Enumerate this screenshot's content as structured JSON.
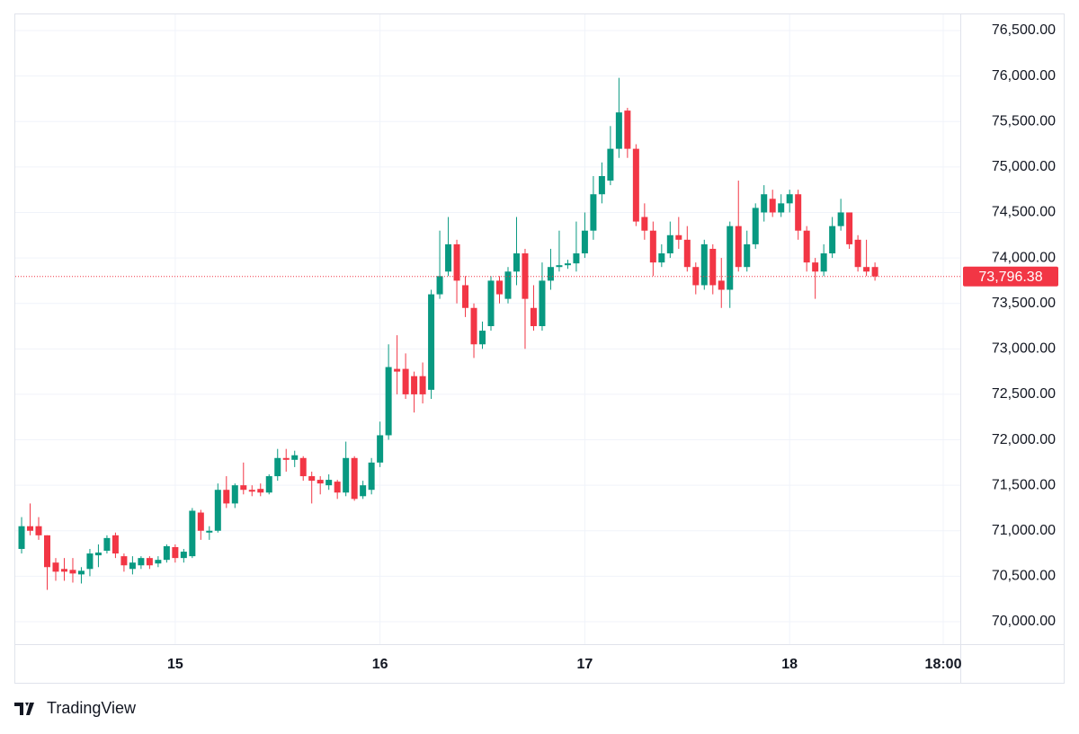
{
  "chart_data": {
    "type": "candlestick",
    "x": [
      6,
      7,
      8,
      9,
      10,
      11,
      12,
      13,
      14,
      15,
      16,
      17,
      18,
      19,
      20,
      21,
      22,
      23,
      24,
      25,
      26,
      27,
      28,
      29,
      30,
      31,
      32,
      33,
      34,
      35,
      36,
      37,
      38,
      39,
      40,
      41,
      42,
      43,
      44,
      45,
      46,
      47,
      48,
      49,
      50,
      51,
      52,
      53,
      54,
      55,
      56,
      57,
      58,
      59,
      60,
      61,
      62,
      63,
      64,
      65,
      66,
      67,
      68,
      69,
      70,
      71,
      72,
      73,
      74,
      75,
      76,
      77,
      78,
      79,
      80,
      81,
      82,
      83,
      84,
      85,
      86,
      87,
      88,
      89,
      90,
      91,
      92,
      93,
      94,
      95,
      96,
      97,
      98,
      99,
      100,
      101,
      102,
      103,
      104,
      105,
      106
    ],
    "open": [
      70800,
      71050,
      71050,
      70950,
      70650,
      70580,
      70570,
      70520,
      70580,
      70730,
      70780,
      70950,
      70720,
      70580,
      70620,
      70700,
      70640,
      70680,
      70820,
      70700,
      70720,
      71200,
      70980,
      71000,
      71450,
      71300,
      71500,
      71450,
      71460,
      71420,
      71600,
      71800,
      71780,
      71800,
      71600,
      71560,
      71500,
      71540,
      71420,
      71800,
      71380,
      71450,
      71750,
      72050,
      72780,
      72780,
      72700,
      72700,
      72550,
      73600,
      73850,
      74150,
      73700,
      73450,
      73050,
      73250,
      73750,
      73550,
      73850,
      74050,
      73450,
      73250,
      73750,
      73900,
      73920,
      73940,
      74050,
      74300,
      74700,
      74850,
      75200,
      75620,
      75200,
      74450,
      74300,
      73950,
      74050,
      74250,
      74200,
      73900,
      73700,
      74100,
      73750,
      73650,
      74350,
      73900,
      74150,
      74500,
      74650,
      74500,
      74600,
      74700,
      74300,
      73950,
      73850,
      74050,
      74350,
      74500,
      74200,
      73900,
      73900
    ],
    "high": [
      71150,
      71300,
      71150,
      70950,
      70700,
      70700,
      70700,
      70600,
      70800,
      70850,
      70950,
      70980,
      70750,
      70720,
      70720,
      70720,
      70720,
      70850,
      70850,
      70800,
      71250,
      71230,
      71050,
      71520,
      71600,
      71520,
      71750,
      71500,
      71520,
      71620,
      71900,
      71900,
      71880,
      71820,
      71650,
      71600,
      71620,
      71560,
      71980,
      71820,
      71550,
      71800,
      72200,
      73050,
      73150,
      72950,
      72750,
      72850,
      73650,
      74300,
      74450,
      74200,
      73800,
      73500,
      73300,
      73800,
      73800,
      73900,
      74450,
      74100,
      73700,
      73950,
      74100,
      74300,
      73980,
      74400,
      74500,
      74900,
      75050,
      75450,
      75980,
      75650,
      75250,
      74600,
      74400,
      74150,
      74400,
      74450,
      74350,
      73950,
      74200,
      74150,
      74000,
      74400,
      74850,
      74300,
      74600,
      74800,
      74750,
      74700,
      74750,
      74750,
      74350,
      74000,
      74150,
      74450,
      74650,
      74500,
      74250,
      74200,
      73950
    ],
    "low": [
      70750,
      70950,
      70900,
      70350,
      70450,
      70450,
      70430,
      70420,
      70500,
      70600,
      70750,
      70700,
      70550,
      70520,
      70580,
      70580,
      70600,
      70650,
      70650,
      70650,
      70700,
      70900,
      70900,
      70980,
      71250,
      71250,
      71400,
      71380,
      71380,
      71400,
      71550,
      71650,
      71700,
      71550,
      71300,
      71400,
      71450,
      71350,
      71380,
      71330,
      71350,
      71400,
      71700,
      72000,
      72500,
      72450,
      72300,
      72400,
      72450,
      73550,
      73800,
      73500,
      73350,
      72900,
      73000,
      73200,
      73500,
      73500,
      73700,
      73000,
      73200,
      73200,
      73650,
      73850,
      73880,
      73850,
      74000,
      74200,
      74600,
      74800,
      75100,
      75100,
      74350,
      74200,
      73800,
      73900,
      74000,
      74100,
      73850,
      73600,
      73650,
      73600,
      73450,
      73450,
      73850,
      73850,
      74100,
      74400,
      74450,
      74450,
      74500,
      74200,
      73850,
      73550,
      73800,
      74000,
      74300,
      74100,
      73850,
      73800,
      73750
    ],
    "close": [
      71050,
      71000,
      70950,
      70600,
      70550,
      70550,
      70530,
      70560,
      70750,
      70760,
      70920,
      70750,
      70620,
      70650,
      70700,
      70620,
      70680,
      70830,
      70700,
      70770,
      71220,
      71000,
      71000,
      71450,
      71300,
      71500,
      71450,
      71430,
      71420,
      71600,
      71800,
      71780,
      71830,
      71600,
      71550,
      71520,
      71560,
      71420,
      71800,
      71350,
      71500,
      71750,
      72050,
      72800,
      72750,
      72500,
      72500,
      72500,
      73600,
      73800,
      74150,
      73750,
      73450,
      73050,
      73200,
      73750,
      73600,
      73850,
      74050,
      73550,
      73250,
      73750,
      73900,
      73920,
      73940,
      74050,
      74300,
      74700,
      74900,
      75200,
      75600,
      75200,
      74400,
      74300,
      73950,
      74050,
      74250,
      74200,
      73900,
      73700,
      74150,
      73700,
      73650,
      74350,
      73900,
      74150,
      74550,
      74700,
      74500,
      74600,
      74700,
      74300,
      73950,
      73850,
      74050,
      74350,
      74500,
      74150,
      73900,
      73850,
      73796.38
    ],
    "up_color": "#089981",
    "down_color": "#f23645",
    "last_price": {
      "value": 73796.38,
      "label": "73,796.38"
    },
    "xlim": [
      5.26,
      116
    ],
    "xticks": [
      {
        "value": 24,
        "label": "15"
      },
      {
        "value": 48,
        "label": "16"
      },
      {
        "value": 72,
        "label": "17"
      },
      {
        "value": 96,
        "label": "18"
      },
      {
        "value": 114,
        "label": "18:00"
      }
    ],
    "ylim": [
      69753,
      76678
    ],
    "yticks": [
      {
        "value": 70000,
        "label": "70,000.00"
      },
      {
        "value": 70500,
        "label": "70,500.00"
      },
      {
        "value": 71000,
        "label": "71,000.00"
      },
      {
        "value": 71500,
        "label": "71,500.00"
      },
      {
        "value": 72000,
        "label": "72,000.00"
      },
      {
        "value": 72500,
        "label": "72,500.00"
      },
      {
        "value": 73000,
        "label": "73,000.00"
      },
      {
        "value": 73500,
        "label": "73,500.00"
      },
      {
        "value": 74000,
        "label": "74,000.00"
      },
      {
        "value": 74500,
        "label": "74,500.00"
      },
      {
        "value": 75000,
        "label": "75,000.00"
      },
      {
        "value": 75500,
        "label": "75,500.00"
      },
      {
        "value": 76000,
        "label": "76,000.00"
      },
      {
        "value": 76500,
        "label": "76,500.00"
      }
    ],
    "grid": true
  },
  "footer": {
    "brand": "TradingView"
  }
}
